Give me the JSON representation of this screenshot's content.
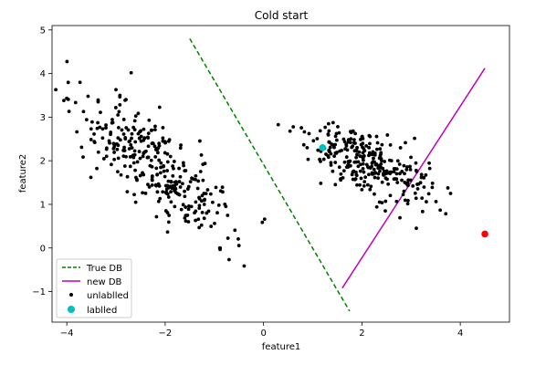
{
  "chart_data": {
    "type": "scatter",
    "title": "Cold start",
    "xlabel": "feature1",
    "ylabel": "feature2",
    "xlim": [
      -4.3,
      5.0
    ],
    "ylim": [
      -1.7,
      5.1
    ],
    "xticks": [
      -4,
      -2,
      0,
      2,
      4
    ],
    "yticks": [
      -1,
      0,
      1,
      2,
      3,
      4,
      5
    ],
    "grid": false,
    "legend": {
      "location": "lower-left",
      "entries": [
        "True DB",
        "new DB",
        "unlablled",
        "lablled"
      ]
    },
    "series": [
      {
        "name": "True DB",
        "kind": "line",
        "style": "dashed",
        "color": "#008000",
        "points": [
          [
            -1.5,
            4.8
          ],
          [
            1.75,
            -1.45
          ]
        ]
      },
      {
        "name": "new DB",
        "kind": "line",
        "style": "solid",
        "color": "#bf00bf",
        "points": [
          [
            1.6,
            -0.92
          ],
          [
            4.5,
            4.12
          ]
        ]
      },
      {
        "name": "unlablled",
        "kind": "scatter",
        "color": "#000000",
        "clusters": [
          {
            "cx": -2.2,
            "cy": 1.9,
            "slope": -1.05,
            "spread_along": 1.05,
            "spread_across": 0.38,
            "count": 330,
            "seed": 11
          },
          {
            "cx": 2.05,
            "cy": 2.0,
            "slope": -0.6,
            "spread_along": 0.72,
            "spread_across": 0.3,
            "count": 290,
            "seed": 29
          }
        ]
      },
      {
        "name": "lablled",
        "kind": "scatter",
        "points": [
          {
            "x": 1.2,
            "y": 2.3,
            "color": "#00bfbf"
          },
          {
            "x": 4.5,
            "y": 0.32,
            "color": "#ff0000"
          }
        ]
      }
    ]
  }
}
